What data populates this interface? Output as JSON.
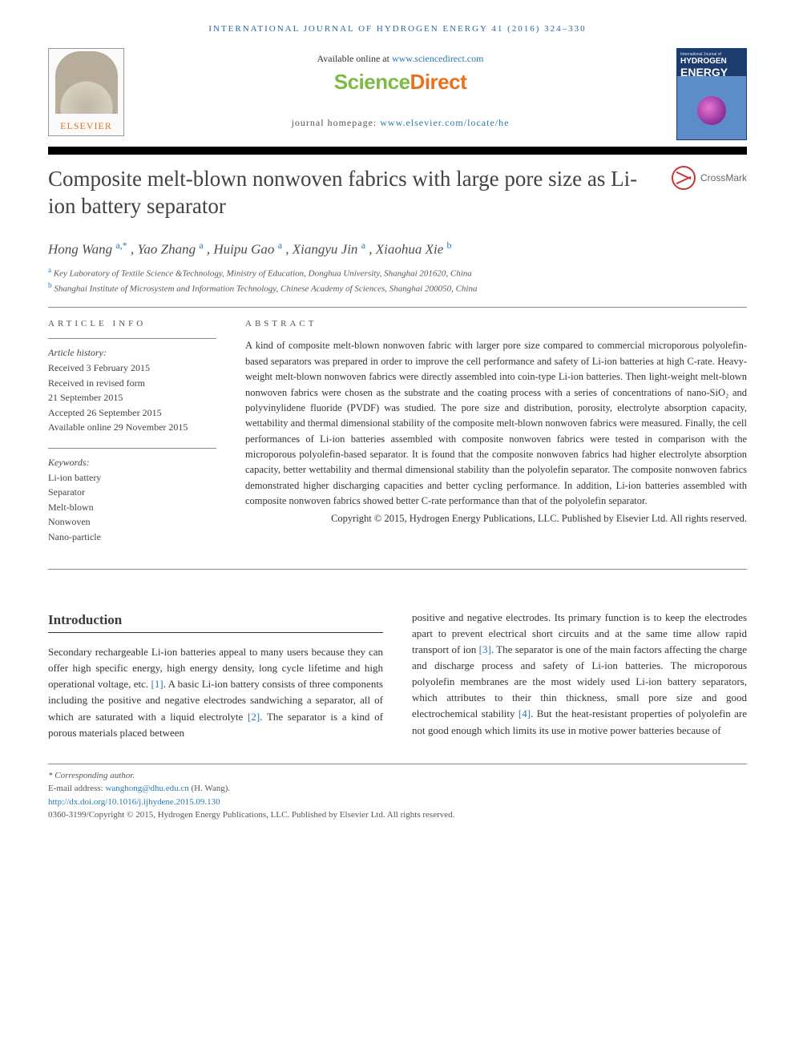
{
  "running_head": "international journal of hydrogen energy 41 (2016) 324–330",
  "header": {
    "available_prefix": "Available online at ",
    "available_link": "www.sciencedirect.com",
    "sd_logo_left": "Science",
    "sd_logo_right": "Direct",
    "homepage_prefix": "journal homepage: ",
    "homepage_link": "www.elsevier.com/locate/he",
    "elsevier_word": "ELSEVIER",
    "journal_cover": {
      "line1": "International Journal of",
      "line2": "HYDROGEN",
      "line3": "ENERGY"
    }
  },
  "crossmark_label": "CrossMark",
  "title": "Composite melt-blown nonwoven fabrics with large pore size as Li-ion battery separator",
  "authors_html": {
    "a1_name": "Hong Wang ",
    "a1_sup": "a,*",
    "a2_name": ", Yao Zhang ",
    "a2_sup": "a",
    "a3_name": ", Huipu Gao ",
    "a3_sup": "a",
    "a4_name": ", Xiangyu Jin ",
    "a4_sup": "a",
    "a5_name": ", Xiaohua Xie ",
    "a5_sup": "b"
  },
  "affiliations": {
    "a_sup": "a",
    "a_text": " Key Laboratory of Textile Science &Technology, Ministry of Education, Donghua University, Shanghai 201620, China",
    "b_sup": "b",
    "b_text": " Shanghai Institute of Microsystem and Information Technology, Chinese Academy of Sciences, Shanghai 200050, China"
  },
  "article_info": {
    "head": "ARTICLE INFO",
    "history_label": "Article history:",
    "received": "Received 3 February 2015",
    "revised1": "Received in revised form",
    "revised2": "21 September 2015",
    "accepted": "Accepted 26 September 2015",
    "online": "Available online 29 November 2015",
    "keywords_label": "Keywords:",
    "kw": [
      "Li-ion battery",
      "Separator",
      "Melt-blown",
      "Nonwoven",
      "Nano-particle"
    ]
  },
  "abstract": {
    "head": "ABSTRACT",
    "text": "A kind of composite melt-blown nonwoven fabric with larger pore size compared to commercial microporous polyolefin-based separators was prepared in order to improve the cell performance and safety of Li-ion batteries at high C-rate. Heavy-weight melt-blown nonwoven fabrics were directly assembled into coin-type Li-ion batteries. Then light-weight melt-blown nonwoven fabrics were chosen as the substrate and the coating process with a series of concentrations of nano-SiO₂ and polyvinylidene fluoride (PVDF) was studied. The pore size and distribution, porosity, electrolyte absorption capacity, wettability and thermal dimensional stability of the composite melt-blown nonwoven fabrics were measured. Finally, the cell performances of Li-ion batteries assembled with composite nonwoven fabrics were tested in comparison with the microporous polyolefin-based separator. It is found that the composite nonwoven fabrics had higher electrolyte absorption capacity, better wettability and thermal dimensional stability than the polyolefin separator. The composite nonwoven fabrics demonstrated higher discharging capacities and better cycling performance. In addition, Li-ion batteries assembled with composite nonwoven fabrics showed better C-rate performance than that of the polyolefin separator.",
    "copyright": "Copyright © 2015, Hydrogen Energy Publications, LLC. Published by Elsevier Ltd. All rights reserved."
  },
  "introduction": {
    "head": "Introduction",
    "col1_pre": "Secondary rechargeable Li-ion batteries appeal to many users because they can offer high specific energy, high energy density, long cycle lifetime and high operational voltage, etc. ",
    "ref1": "[1]",
    "col1_mid": ". A basic Li-ion battery consists of three components including the positive and negative electrodes sandwiching a separator, all of which are saturated with a liquid electrolyte ",
    "ref2": "[2]",
    "col1_post": ". The separator is a kind of porous materials placed between",
    "col2_pre": "positive and negative electrodes. Its primary function is to keep the electrodes apart to prevent electrical short circuits and at the same time allow rapid transport of ion ",
    "ref3": "[3]",
    "col2_mid": ". The separator is one of the main factors affecting the charge and discharge process and safety of Li-ion batteries. The microporous polyolefin membranes are the most widely used Li-ion battery separators, which attributes to their thin thickness, small pore size and good electrochemical stability ",
    "ref4": "[4]",
    "col2_post": ". But the heat-resistant properties of polyolefin are not good enough which limits its use in motive power batteries because of"
  },
  "footnotes": {
    "corr_label": "* Corresponding author.",
    "email_label": "E-mail address: ",
    "email": "wanghong@dhu.edu.cn",
    "email_suffix": " (H. Wang).",
    "doi": "http://dx.doi.org/10.1016/j.ijhydene.2015.09.130",
    "issn_line": "0360-3199/Copyright © 2015, Hydrogen Energy Publications, LLC. Published by Elsevier Ltd. All rights reserved."
  },
  "colors": {
    "link": "#2a7ab0",
    "elsevier_orange": "#e9711c",
    "sd_green": "#7dbb42"
  }
}
